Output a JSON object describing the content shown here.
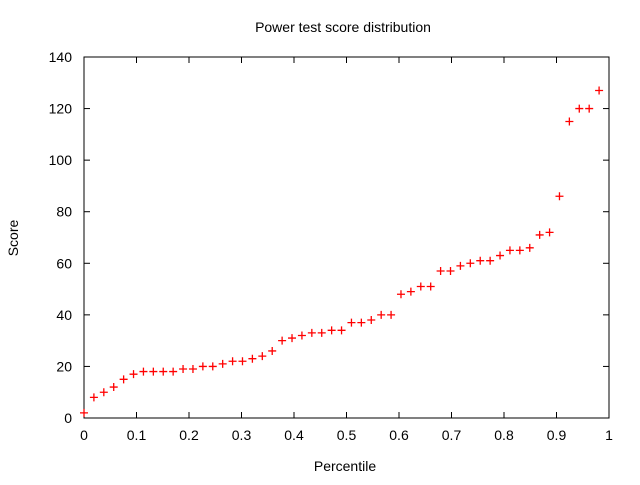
{
  "chart_data": {
    "type": "scatter",
    "title": "Power test score distribution",
    "xlabel": "Percentile",
    "ylabel": "Score",
    "xlim": [
      0,
      1
    ],
    "ylim": [
      0,
      140
    ],
    "xticks": [
      "0",
      "0.1",
      "0.2",
      "0.3",
      "0.4",
      "0.5",
      "0.6",
      "0.7",
      "0.8",
      "0.9",
      "1"
    ],
    "yticks": [
      "0",
      "20",
      "40",
      "60",
      "80",
      "100",
      "120",
      "140"
    ],
    "grid": false,
    "marker": "plus",
    "color": "#ff0000",
    "n_points": 53,
    "y": [
      2,
      8,
      10,
      12,
      15,
      17,
      18,
      18,
      18,
      18,
      19,
      19,
      20,
      20,
      21,
      22,
      22,
      23,
      24,
      26,
      30,
      31,
      32,
      33,
      33,
      34,
      34,
      37,
      37,
      38,
      40,
      40,
      48,
      49,
      51,
      51,
      57,
      57,
      59,
      60,
      61,
      61,
      63,
      65,
      65,
      66,
      71,
      72,
      86,
      115,
      120,
      120,
      127
    ]
  }
}
